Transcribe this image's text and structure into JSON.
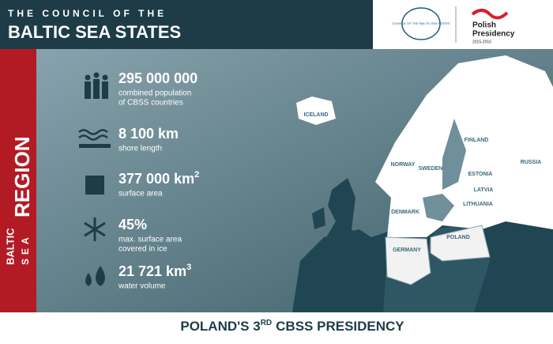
{
  "header": {
    "line1": "THE COUNCIL OF THE",
    "line2": "BALTIC SEA STATES"
  },
  "logos": {
    "cbss": "COUNCIL OF THE BALTIC SEA STATES",
    "presidency_line1": "Polish",
    "presidency_line2": "Presidency",
    "presidency_years": "2015-2016"
  },
  "sidebar": {
    "word1": "BALTIC",
    "word2": "SEA",
    "word3": "REGION"
  },
  "stats": [
    {
      "value": "295 000 000",
      "label_line1": "combined population",
      "label_line2": "of CBSS countries"
    },
    {
      "value": "8 100 km",
      "label_line1": "shore length"
    },
    {
      "value": "377 000 km",
      "sup": "2",
      "label_line1": "surface area"
    },
    {
      "value": "45%",
      "label_line1": "max. surface area",
      "label_line2": "covered in ice"
    },
    {
      "value": "21 721 km",
      "sup": "3",
      "label_line1": "water volume"
    }
  ],
  "map_labels": [
    "ICELAND",
    "NORWAY",
    "SWEDEN",
    "FINLAND",
    "ESTONIA",
    "LATVIA",
    "LITHUANIA",
    "DENMARK",
    "GERMANY",
    "POLAND",
    "RUSSIA"
  ],
  "footer": {
    "part1": "POLAND'S 3",
    "sup": "RD",
    "part2": "CBSS PRESIDENCY"
  }
}
